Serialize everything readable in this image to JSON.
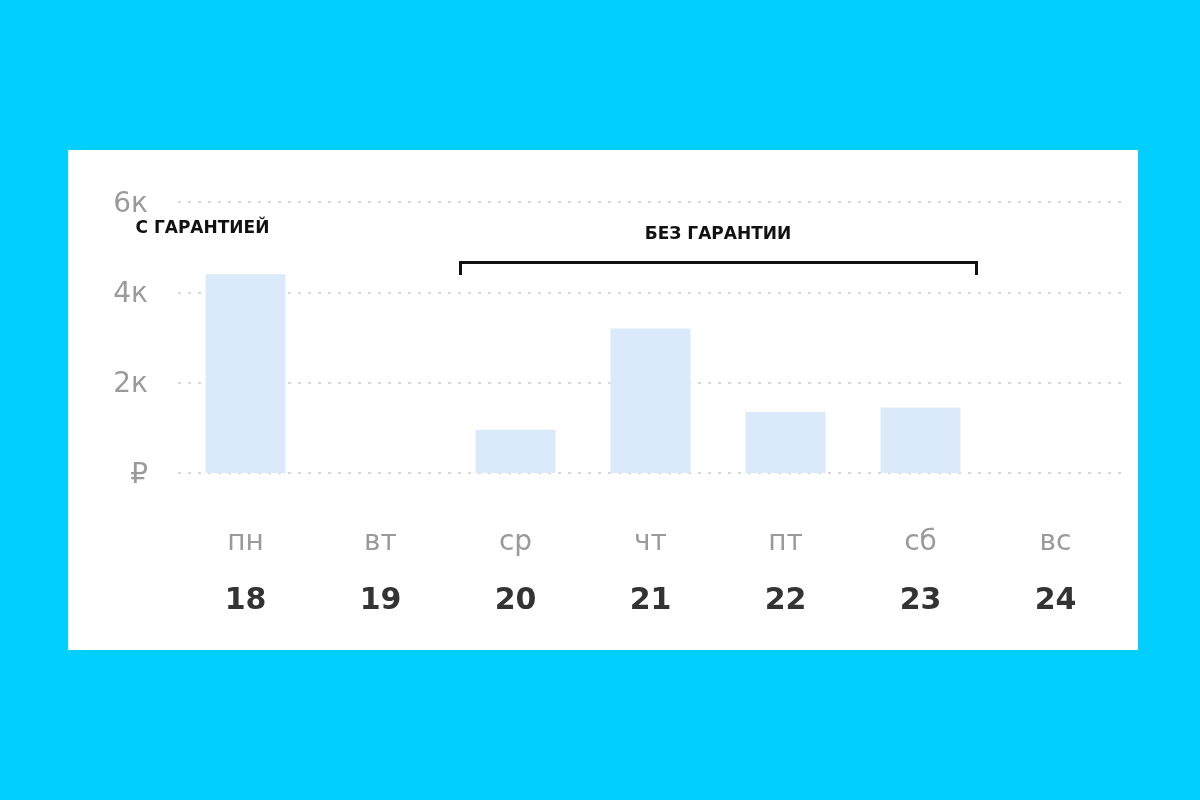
{
  "chart_data": {
    "type": "bar",
    "categories": [
      "пн\n18",
      "вт\n19",
      "ср\n20",
      "чт\n21",
      "пт\n22",
      "сб\n23",
      "вс\n24"
    ],
    "values": [
      4.4,
      0,
      0.96,
      3.2,
      1.35,
      1.45,
      0
    ],
    "color": "#dbeafa",
    "ylim": [
      0,
      6
    ],
    "yticks": [
      {
        "value": 0,
        "label": "₽"
      },
      {
        "value": 2,
        "label": "2к"
      },
      {
        "value": 4,
        "label": "4к"
      },
      {
        "value": 6,
        "label": "6к"
      }
    ],
    "grid": "y",
    "annotations": [
      "С ГАРАНТИЕЙ",
      "БЕЗ ГАРАНТИИ"
    ]
  }
}
